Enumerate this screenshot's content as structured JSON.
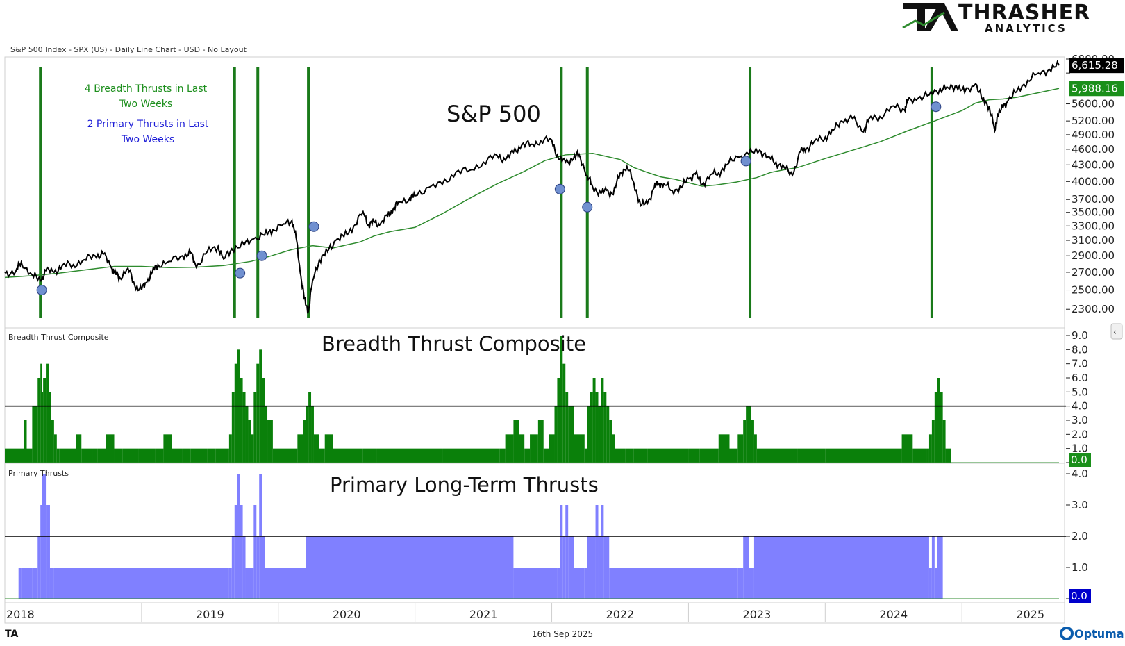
{
  "header": {
    "chart_description": "S&P 500 Index - SPX (US) - Daily Line Chart - USD - No Layout",
    "logo_main": "THRASHER",
    "logo_sub": "ANALYTICS",
    "logo_mark": "TA"
  },
  "footer": {
    "date": "16th Sep 2025",
    "left_mark": "TA",
    "brand": "Optuma"
  },
  "annotations": {
    "breadth_note_line1": "4 Breadth Thrusts in Last",
    "breadth_note_line2": "Two Weeks",
    "primary_note_line1": "2 Primary Thrusts in Last",
    "primary_note_line2": "Two Weeks"
  },
  "colors": {
    "price_line": "#000000",
    "moving_average": "#2e8b2e",
    "thrust_lines": "#1a7a1a",
    "breadth_bars": "#0a800a",
    "primary_bars": "#8080ff",
    "markers": "#7090d0",
    "threshold_line": "#000000"
  },
  "chart_data": [
    {
      "type": "line",
      "title": "S&P 500",
      "y_scale": "log",
      "ylim": [
        2200,
        6800
      ],
      "y_ticks": [
        2300,
        2500,
        2700,
        2900,
        3100,
        3300,
        3500,
        3700,
        4000,
        4300,
        4600,
        4900,
        5200,
        5600,
        6400,
        6800
      ],
      "y_tick_labels": [
        "2300.00",
        "2500.00",
        "2700.00",
        "2900.00",
        "3100.00",
        "3300.00",
        "3500.00",
        "3700.00",
        "4000.00",
        "4300.00",
        "4600.00",
        "4900.00",
        "5200.00",
        "5600.00",
        "",
        "6800.00"
      ],
      "last_price_label": "6,615.28",
      "last_ma_label": "5,988.16",
      "series": [
        {
          "role": "price",
          "x": [
            2018.0,
            2018.08,
            2018.12,
            2018.2,
            2018.26,
            2018.3,
            2018.36,
            2018.42,
            2018.5,
            2018.58,
            2018.66,
            2018.72,
            2018.78,
            2018.8,
            2018.84,
            2018.9,
            2018.95,
            2019.0,
            2019.04,
            2019.08,
            2019.12,
            2019.2,
            2019.3,
            2019.36,
            2019.4,
            2019.48,
            2019.56,
            2019.6,
            2019.66,
            2019.75,
            2019.82,
            2019.9,
            2019.96,
            2020.04,
            2020.1,
            2020.13,
            2020.16,
            2020.19,
            2020.22,
            2020.25,
            2020.3,
            2020.36,
            2020.42,
            2020.48,
            2020.55,
            2020.62,
            2020.66,
            2020.7,
            2020.74,
            2020.8,
            2020.84,
            2020.88,
            2020.96,
            2021.0,
            2021.1,
            2021.2,
            2021.3,
            2021.4,
            2021.5,
            2021.6,
            2021.66,
            2021.72,
            2021.78,
            2021.85,
            2021.92,
            2022.0,
            2022.05,
            2022.1,
            2022.16,
            2022.2,
            2022.26,
            2022.3,
            2022.36,
            2022.4,
            2022.45,
            2022.5,
            2022.55,
            2022.6,
            2022.65,
            2022.7,
            2022.75,
            2022.78,
            2022.82,
            2022.88,
            2022.95,
            2023.0,
            2023.05,
            2023.1,
            2023.16,
            2023.22,
            2023.28,
            2023.36,
            2023.44,
            2023.52,
            2023.58,
            2023.64,
            2023.7,
            2023.76,
            2023.82,
            2023.86,
            2023.92,
            2024.0,
            2024.06,
            2024.12,
            2024.2,
            2024.28,
            2024.32,
            2024.4,
            2024.5,
            2024.58,
            2024.6,
            2024.68,
            2024.76,
            2024.84,
            2024.9,
            2024.96,
            2025.02,
            2025.1,
            2025.15,
            2025.2,
            2025.24,
            2025.26,
            2025.3,
            2025.34,
            2025.4,
            2025.48,
            2025.56,
            2025.64,
            2025.71
          ],
          "y": [
            2690,
            2710,
            2820,
            2670,
            2600,
            2720,
            2700,
            2780,
            2790,
            2850,
            2900,
            2920,
            2750,
            2700,
            2640,
            2750,
            2550,
            2500,
            2590,
            2710,
            2790,
            2830,
            2900,
            2930,
            2760,
            2950,
            3020,
            2860,
            2990,
            3040,
            3120,
            3170,
            3250,
            3330,
            3380,
            3140,
            2700,
            2400,
            2280,
            2600,
            2850,
            2950,
            3100,
            3150,
            3290,
            3510,
            3320,
            3360,
            3310,
            3440,
            3550,
            3660,
            3720,
            3760,
            3900,
            3950,
            4170,
            4200,
            4350,
            4480,
            4390,
            4540,
            4680,
            4700,
            4770,
            4790,
            4400,
            4350,
            4420,
            4500,
            4100,
            3900,
            3800,
            3850,
            3780,
            4150,
            4270,
            3980,
            3600,
            3640,
            3900,
            3970,
            3960,
            3850,
            3900,
            4050,
            4130,
            3950,
            4120,
            4150,
            4300,
            4450,
            4500,
            4580,
            4450,
            4350,
            4250,
            4110,
            4550,
            4600,
            4760,
            4850,
            5000,
            5200,
            5250,
            4960,
            5250,
            5300,
            5550,
            5450,
            5640,
            5740,
            5820,
            5990,
            6000,
            6050,
            5880,
            6110,
            5700,
            5550,
            4980,
            5350,
            5500,
            5700,
            5900,
            6200,
            6400,
            6500,
            6615
          ]
        },
        {
          "role": "moving_average",
          "x": [
            2018.0,
            2018.2,
            2018.4,
            2018.6,
            2018.8,
            2019.0,
            2019.2,
            2019.4,
            2019.6,
            2019.8,
            2019.95,
            2020.1,
            2020.25,
            2020.4,
            2020.5,
            2020.6,
            2020.7,
            2020.82,
            2021.0,
            2021.2,
            2021.4,
            2021.6,
            2021.8,
            2021.95,
            2022.1,
            2022.3,
            2022.5,
            2022.6,
            2022.7,
            2022.8,
            2022.9,
            2023.0,
            2023.1,
            2023.2,
            2023.35,
            2023.5,
            2023.6,
            2023.7,
            2023.8,
            2024.0,
            2024.2,
            2024.4,
            2024.6,
            2024.8,
            2025.0,
            2025.1,
            2025.2,
            2025.3,
            2025.4,
            2025.55,
            2025.71
          ],
          "y": [
            2640,
            2660,
            2690,
            2730,
            2770,
            2770,
            2755,
            2760,
            2780,
            2830,
            2900,
            2980,
            3030,
            3000,
            3040,
            3080,
            3160,
            3220,
            3280,
            3480,
            3720,
            3960,
            4180,
            4380,
            4490,
            4520,
            4400,
            4250,
            4160,
            4080,
            4040,
            3980,
            3920,
            3940,
            3990,
            4070,
            4160,
            4210,
            4250,
            4420,
            4580,
            4750,
            4980,
            5200,
            5440,
            5620,
            5700,
            5720,
            5760,
            5870,
            5988
          ]
        }
      ],
      "thrust_line_dates": [
        2018.26,
        2019.68,
        2019.85,
        2020.22,
        2022.07,
        2022.26,
        2023.45,
        2024.78
      ],
      "markers": [
        {
          "x": 2018.27,
          "y": 2500
        },
        {
          "x": 2019.72,
          "y": 2690
        },
        {
          "x": 2019.88,
          "y": 2900
        },
        {
          "x": 2020.26,
          "y": 3290
        },
        {
          "x": 2022.06,
          "y": 3870
        },
        {
          "x": 2022.26,
          "y": 3580
        },
        {
          "x": 2023.42,
          "y": 4370
        },
        {
          "x": 2024.81,
          "y": 5530
        }
      ]
    },
    {
      "type": "bar",
      "title": "Breadth Thrust Composite",
      "pane_label": "Breadth Thrust Composite",
      "ylim": [
        0,
        9
      ],
      "y_ticks": [
        0,
        1,
        2,
        3,
        4,
        5,
        6,
        7,
        8,
        9
      ],
      "y_tick_labels": [
        "",
        "1.0",
        "2.0",
        "3.0",
        "4.0",
        "5.0",
        "6.0",
        "7.0",
        "8.0",
        "9.0"
      ],
      "threshold": 4,
      "last_value_label": "0.0",
      "series": [
        {
          "name": "Breadth Thrust Composite",
          "x": [
            2018.0,
            2018.04,
            2018.14,
            2018.16,
            2018.2,
            2018.24,
            2018.26,
            2018.27,
            2018.28,
            2018.3,
            2018.32,
            2018.34,
            2018.36,
            2018.38,
            2018.4,
            2018.44,
            2018.48,
            2018.52,
            2018.56,
            2018.6,
            2018.64,
            2018.68,
            2018.74,
            2018.8,
            2018.86,
            2018.92,
            2018.98,
            2019.04,
            2019.1,
            2019.16,
            2019.22,
            2019.3,
            2019.36,
            2019.42,
            2019.48,
            2019.54,
            2019.6,
            2019.64,
            2019.66,
            2019.68,
            2019.7,
            2019.72,
            2019.74,
            2019.76,
            2019.78,
            2019.8,
            2019.82,
            2019.84,
            2019.86,
            2019.88,
            2019.9,
            2019.92,
            2019.96,
            2020.02,
            2020.1,
            2020.14,
            2020.18,
            2020.2,
            2020.22,
            2020.24,
            2020.26,
            2020.3,
            2020.34,
            2020.4,
            2020.5,
            2020.62,
            2020.72,
            2021.2,
            2021.3,
            2021.55,
            2021.62,
            2021.66,
            2021.72,
            2021.76,
            2021.8,
            2021.84,
            2021.9,
            2021.94,
            2021.98,
            2022.02,
            2022.04,
            2022.06,
            2022.08,
            2022.1,
            2022.12,
            2022.16,
            2022.24,
            2022.26,
            2022.28,
            2022.3,
            2022.32,
            2022.34,
            2022.36,
            2022.38,
            2022.4,
            2022.42,
            2022.44,
            2022.46,
            2022.5,
            2022.54,
            2022.6,
            2022.7,
            2022.76,
            2022.88,
            2023.0,
            2023.08,
            2023.16,
            2023.22,
            2023.3,
            2023.36,
            2023.4,
            2023.42,
            2023.44,
            2023.46,
            2023.48,
            2023.5,
            2023.54,
            2023.56,
            2023.8,
            2023.94,
            2024.0,
            2024.16,
            2024.56,
            2024.64,
            2024.74,
            2024.76,
            2024.78,
            2024.8,
            2024.82,
            2024.84,
            2024.86,
            2024.88,
            2024.92,
            2025.0,
            2025.71
          ],
          "values": [
            1,
            1,
            3,
            1,
            4,
            6,
            7,
            5,
            6,
            7,
            5,
            3,
            2,
            1,
            1,
            1,
            1,
            2,
            1,
            1,
            1,
            1,
            2,
            1,
            1,
            1,
            1,
            1,
            1,
            2,
            1,
            1,
            1,
            1,
            1,
            1,
            1,
            2,
            5,
            7,
            8,
            6,
            5,
            4,
            3,
            2,
            5,
            7,
            8,
            6,
            4,
            3,
            1,
            1,
            1,
            2,
            3,
            4,
            5,
            4,
            2,
            1,
            2,
            1,
            1,
            1,
            1,
            1,
            1,
            1,
            1,
            2,
            3,
            2,
            1,
            2,
            3,
            1,
            2,
            4,
            6,
            9,
            7,
            5,
            4,
            2,
            1,
            4,
            5,
            6,
            5,
            4,
            6,
            5,
            4,
            3,
            2,
            1,
            1,
            1,
            1,
            1,
            1,
            1,
            1,
            1,
            1,
            2,
            1,
            2,
            3,
            4,
            4,
            3,
            2,
            1,
            1,
            1,
            1,
            1,
            1,
            1,
            2,
            1,
            1,
            2,
            3,
            5,
            6,
            5,
            3,
            1,
            0,
            0,
            0
          ]
        }
      ]
    },
    {
      "type": "bar",
      "title": "Primary Long-Term Thrusts",
      "pane_label": "Primary Thrusts",
      "ylim": [
        0,
        4
      ],
      "y_ticks": [
        0,
        1,
        2,
        3,
        4
      ],
      "y_tick_labels": [
        "",
        "1.0",
        "2.0",
        "3.0",
        "4.0"
      ],
      "threshold": 2,
      "last_value_label": "0.0",
      "series": [
        {
          "name": "Primary Thrusts",
          "x": [
            2018.1,
            2018.12,
            2018.2,
            2018.24,
            2018.26,
            2018.27,
            2018.3,
            2018.33,
            2018.36,
            2018.62,
            2019.64,
            2019.66,
            2019.68,
            2019.7,
            2019.72,
            2019.74,
            2019.76,
            2019.8,
            2019.82,
            2019.84,
            2019.86,
            2019.88,
            2019.9,
            2020.18,
            2020.2,
            2021.72,
            2021.78,
            2022.04,
            2022.06,
            2022.08,
            2022.1,
            2022.12,
            2022.16,
            2022.24,
            2022.26,
            2022.28,
            2022.32,
            2022.34,
            2022.36,
            2022.38,
            2022.42,
            2022.46,
            2022.5,
            2022.56,
            2023.36,
            2023.4,
            2023.44,
            2023.46,
            2023.48,
            2024.76,
            2024.78,
            2024.8,
            2024.82,
            2024.84,
            2024.86
          ],
          "values": [
            1,
            1,
            1,
            2,
            3,
            4,
            3,
            1,
            1,
            1,
            1,
            2,
            3,
            4,
            3,
            2,
            1,
            1,
            3,
            2,
            4,
            2,
            1,
            1,
            2,
            1,
            1,
            1,
            3,
            2,
            3,
            2,
            1,
            1,
            2,
            2,
            3,
            2,
            3,
            2,
            1,
            1,
            1,
            1,
            1,
            2,
            1,
            1,
            2,
            1,
            2,
            1,
            2,
            2,
            1
          ]
        }
      ]
    }
  ],
  "x_axis": {
    "xlim": [
      2018.0,
      2025.71
    ],
    "year_labels": [
      {
        "year": 2018,
        "label": "2018"
      },
      {
        "year": 2019,
        "label": "2019"
      },
      {
        "year": 2020,
        "label": "2020"
      },
      {
        "year": 2021,
        "label": "2021"
      },
      {
        "year": 2022,
        "label": "2022"
      },
      {
        "year": 2023,
        "label": "2023"
      },
      {
        "year": 2024,
        "label": "2024"
      },
      {
        "year": 2025,
        "label": "2025"
      }
    ]
  }
}
